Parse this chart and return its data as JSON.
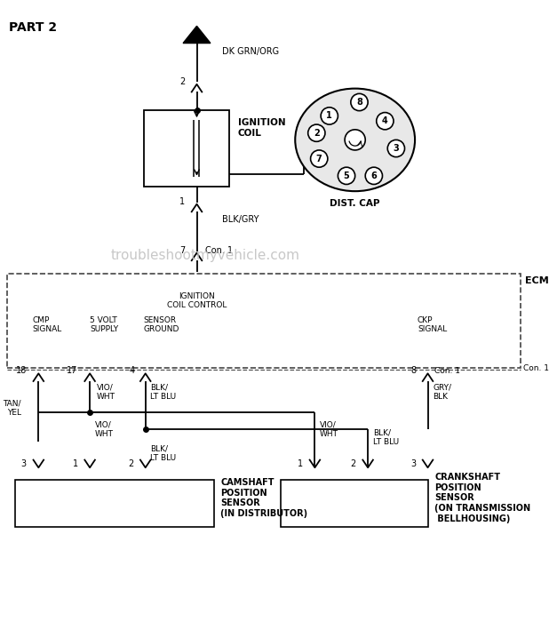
{
  "title": "PART 2",
  "watermark": "troubleshootmyvehicle.com",
  "bg_color": "#ffffff",
  "line_color": "#000000",
  "wire_label_top": "DK GRN/ORG",
  "ignition_coil_label": "IGNITION\nCOIL",
  "dist_cap_label": "DIST. CAP",
  "ecm_label": "ECM",
  "blk_gry_label": "BLK/GRY",
  "sensor_left_label": "CAMSHAFT\nPOSITION\nSENSOR\n(IN DISTRIBUTOR)",
  "sensor_right_label": "CRANKSHAFT\nPOSITION\nSENSOR\n(ON TRANSMISSION\n BELLHOUSING)"
}
